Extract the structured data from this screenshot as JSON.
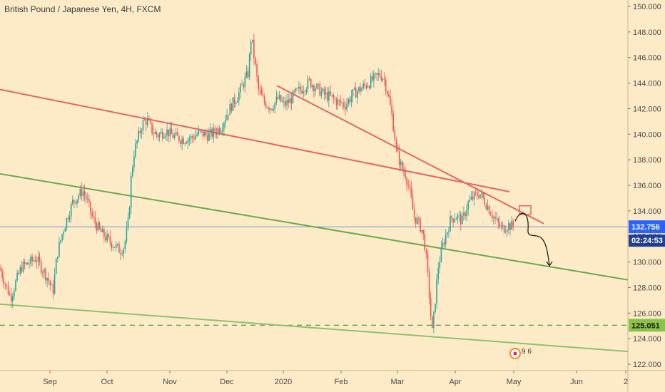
{
  "chart_data": {
    "type": "candlestick",
    "title": "British Pound / Japanese Yen, 4H, FXCM",
    "ylim": [
      121.5,
      150.5
    ],
    "y_ticks": [
      122,
      124,
      126,
      128,
      130,
      132,
      134,
      136,
      138,
      140,
      142,
      144,
      146,
      148,
      150
    ],
    "x_ticks": [
      "Sep",
      "Oct",
      "Nov",
      "Dec",
      "2020",
      "Feb",
      "Mar",
      "Apr",
      "May",
      "Jun",
      "2"
    ],
    "price_path": [
      [
        0,
        129.5
      ],
      [
        8,
        128.2
      ],
      [
        15,
        127.2
      ],
      [
        22,
        128.4
      ],
      [
        30,
        129.6
      ],
      [
        40,
        129.9
      ],
      [
        50,
        130.3
      ],
      [
        60,
        129.4
      ],
      [
        68,
        128.6
      ],
      [
        74,
        127.6
      ],
      [
        80,
        130.6
      ],
      [
        88,
        132.4
      ],
      [
        95,
        133.6
      ],
      [
        102,
        134.7
      ],
      [
        110,
        135.2
      ],
      [
        116,
        135.6
      ],
      [
        122,
        134.8
      ],
      [
        130,
        133.4
      ],
      [
        140,
        132.4
      ],
      [
        150,
        131.8
      ],
      [
        160,
        131.3
      ],
      [
        168,
        130.9
      ],
      [
        174,
        131.2
      ],
      [
        180,
        133.2
      ],
      [
        184,
        136.8
      ],
      [
        188,
        138.6
      ],
      [
        194,
        139.8
      ],
      [
        200,
        140.9
      ],
      [
        206,
        141.1
      ],
      [
        214,
        140.2
      ],
      [
        222,
        139.9
      ],
      [
        232,
        140.3
      ],
      [
        244,
        139.8
      ],
      [
        256,
        139.6
      ],
      [
        268,
        139.7
      ],
      [
        280,
        140.1
      ],
      [
        292,
        139.9
      ],
      [
        302,
        140.2
      ],
      [
        310,
        140.6
      ],
      [
        318,
        141.6
      ],
      [
        326,
        142.4
      ],
      [
        334,
        143.1
      ],
      [
        342,
        144.1
      ],
      [
        348,
        144.8
      ],
      [
        352,
        147.7
      ],
      [
        356,
        146.1
      ],
      [
        362,
        143.5
      ],
      [
        370,
        142.5
      ],
      [
        380,
        142.1
      ],
      [
        390,
        142.8
      ],
      [
        398,
        142.3
      ],
      [
        406,
        142.6
      ],
      [
        414,
        143.2
      ],
      [
        424,
        143.6
      ],
      [
        434,
        144.1
      ],
      [
        444,
        143.6
      ],
      [
        454,
        143.1
      ],
      [
        464,
        142.9
      ],
      [
        474,
        142.5
      ],
      [
        484,
        142.3
      ],
      [
        494,
        143.1
      ],
      [
        504,
        143.5
      ],
      [
        514,
        143.9
      ],
      [
        524,
        144.3
      ],
      [
        532,
        144.7
      ],
      [
        538,
        144.4
      ],
      [
        544,
        143.1
      ],
      [
        550,
        141.2
      ],
      [
        556,
        138.6
      ],
      [
        562,
        137.5
      ],
      [
        568,
        136.9
      ],
      [
        574,
        135.6
      ],
      [
        580,
        133.6
      ],
      [
        586,
        133.1
      ],
      [
        592,
        132.4
      ],
      [
        596,
        131.1
      ],
      [
        600,
        128.6
      ],
      [
        604,
        125.6
      ],
      [
        606,
        124.4
      ],
      [
        610,
        127.1
      ],
      [
        614,
        129.6
      ],
      [
        620,
        131.2
      ],
      [
        626,
        132.3
      ],
      [
        632,
        133.4
      ],
      [
        640,
        133.6
      ],
      [
        648,
        133.2
      ],
      [
        656,
        134.6
      ],
      [
        664,
        135.1
      ],
      [
        672,
        135.4
      ],
      [
        680,
        134.7
      ],
      [
        688,
        133.9
      ],
      [
        696,
        133.1
      ],
      [
        704,
        132.6
      ],
      [
        712,
        132.9
      ],
      [
        720,
        132.76
      ]
    ],
    "last_price": "132.756",
    "countdown": "02:24:53",
    "level": "125.051",
    "trendlines": [
      {
        "name": "red-resistance-long",
        "color": "#e06666",
        "from": [
          0,
          143.5
        ],
        "to": [
          714,
          135.5
        ]
      },
      {
        "name": "red-resistance-short",
        "color": "#e06666",
        "from": [
          388,
          143.8
        ],
        "to": [
          762,
          133.0
        ]
      },
      {
        "name": "green-channel-upper",
        "color": "#6aa84f",
        "from": [
          0,
          136.9
        ],
        "to": [
          880,
          128.6
        ]
      },
      {
        "name": "green-channel-lower",
        "color": "#8cc26f",
        "from": [
          0,
          126.7
        ],
        "to": [
          880,
          123.0
        ]
      }
    ],
    "colors": {
      "background": "#fdebc8",
      "up": "#26a69a",
      "down": "#ef5350",
      "price_tag": "#2962ff",
      "level_tag": "#8bc34a",
      "last_price_line": "#5b8fd8"
    },
    "badge_count": "9 6"
  }
}
